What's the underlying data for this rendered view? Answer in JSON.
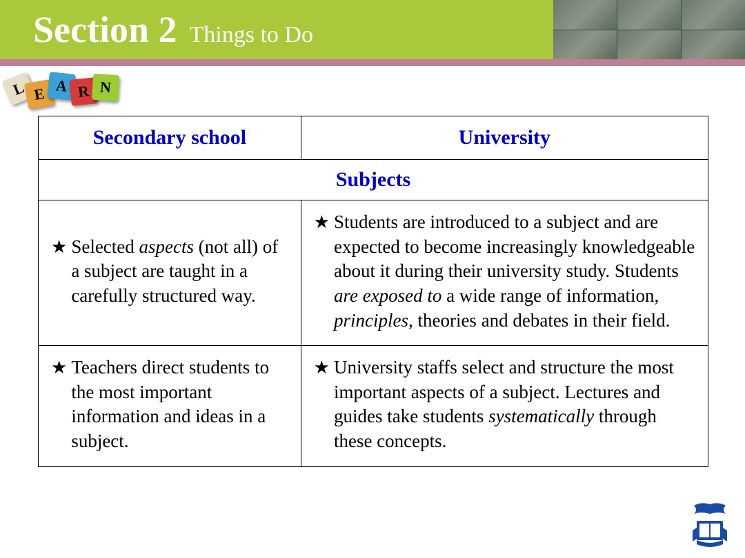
{
  "header": {
    "section_label": "Section 2",
    "subtitle": "Things to Do",
    "bg_color": "#a9c93a",
    "text_color": "#ffffff",
    "stripe_color": "#bd8096"
  },
  "puzzle": {
    "letters": [
      "L",
      "E",
      "A",
      "R",
      "N"
    ],
    "colors": [
      "#e8dfc8",
      "#e8a03a",
      "#3aa0d8",
      "#d83a3a",
      "#9acd32"
    ]
  },
  "table": {
    "header_color": "#0000cc",
    "border_color": "#000000",
    "columns": [
      "Secondary school",
      "University"
    ],
    "section_row": "Subjects",
    "rows": [
      {
        "left": {
          "star": "★",
          "segments": [
            {
              "t": "Selected ",
              "i": false
            },
            {
              "t": "aspects",
              "i": true
            },
            {
              "t": " (not all) of a subject are taught in a carefully structured way.",
              "i": false
            }
          ]
        },
        "right": {
          "star": "★",
          "segments": [
            {
              "t": "Students are introduced to a subject and are expected to become increasingly knowledgeable about it during their university study. Students ",
              "i": false
            },
            {
              "t": "are exposed to",
              "i": true
            },
            {
              "t": " a wide range of information, ",
              "i": false
            },
            {
              "t": "principles",
              "i": true
            },
            {
              "t": ", theories and debates in their field.",
              "i": false
            }
          ]
        }
      },
      {
        "left": {
          "star": "★",
          "segments": [
            {
              "t": "Teachers direct students to the most important information and ideas in a subject.",
              "i": false
            }
          ]
        },
        "right": {
          "star": "★",
          "segments": [
            {
              "t": "University staffs select and structure the most important aspects of a subject. Lectures and guides take students ",
              "i": false
            },
            {
              "t": "systematically",
              "i": true
            },
            {
              "t": " through these concepts.",
              "i": false
            }
          ]
        }
      }
    ]
  },
  "logo_color": "#1a4aa8"
}
